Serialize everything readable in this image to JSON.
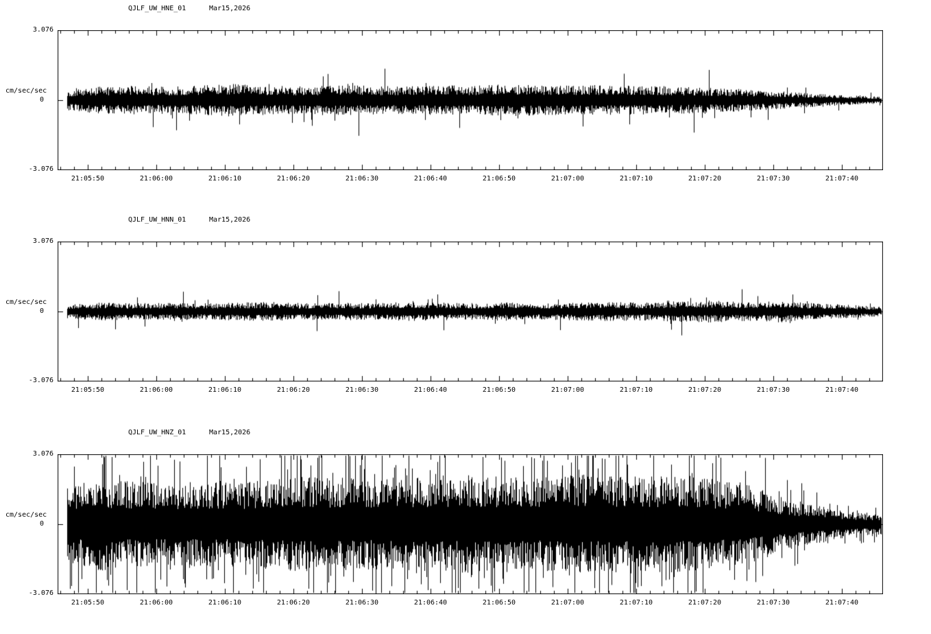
{
  "page": {
    "background": "#ffffff",
    "text_color": "#000000",
    "trace_color": "#000000"
  },
  "chart_data": [
    {
      "type": "line",
      "kind": "seismogram-waveform",
      "station": "QJLF_UW_HNE_01",
      "date": "Mar15,2026",
      "ylabel": "cm/sec/sec",
      "y_max_label": "3.076",
      "y_zero_label": "0",
      "y_min_label": "-3.076",
      "ylim": [
        -3.076,
        3.076
      ],
      "x_ticks": [
        "21:05:50",
        "21:06:00",
        "21:06:10",
        "21:06:20",
        "21:06:30",
        "21:06:40",
        "21:06:50",
        "21:07:00",
        "21:07:10",
        "21:07:20",
        "21:07:30",
        "21:07:40"
      ],
      "x_tick_interval_sec": 10,
      "grid": false,
      "envelope": [
        0.15,
        0.2,
        0.21,
        0.2,
        0.22,
        0.24,
        0.21,
        0.2,
        0.22,
        0.21,
        0.2,
        0.22,
        0.21,
        0.24,
        0.22,
        0.21,
        0.22,
        0.21,
        0.2,
        0.18,
        0.16,
        0.13,
        0.1,
        0.07,
        0.05
      ],
      "spike_prob": 0.05,
      "spike_max": 2.7,
      "seed": 101
    },
    {
      "type": "line",
      "kind": "seismogram-waveform",
      "station": "QJLF_UW_HNN_01",
      "date": "Mar15,2026",
      "ylabel": "cm/sec/sec",
      "y_max_label": "3.076",
      "y_zero_label": "0",
      "y_min_label": "-3.076",
      "ylim": [
        -3.076,
        3.076
      ],
      "x_ticks": [
        "21:05:50",
        "21:06:00",
        "21:06:10",
        "21:06:20",
        "21:06:30",
        "21:06:40",
        "21:06:50",
        "21:07:00",
        "21:07:10",
        "21:07:20",
        "21:07:30",
        "21:07:40"
      ],
      "x_tick_interval_sec": 10,
      "grid": false,
      "envelope": [
        0.1,
        0.13,
        0.12,
        0.13,
        0.12,
        0.13,
        0.14,
        0.12,
        0.13,
        0.12,
        0.14,
        0.13,
        0.12,
        0.14,
        0.12,
        0.13,
        0.14,
        0.13,
        0.15,
        0.16,
        0.14,
        0.16,
        0.12,
        0.1,
        0.07
      ],
      "spike_prob": 0.045,
      "spike_max": 2.6,
      "seed": 202
    },
    {
      "type": "line",
      "kind": "seismogram-waveform",
      "station": "QJLF_UW_HNZ_01",
      "date": "Mar15,2026",
      "ylabel": "cm/sec/sec",
      "y_max_label": "3.076",
      "y_zero_label": "0",
      "y_min_label": "-3.076",
      "ylim": [
        -3.076,
        3.076
      ],
      "x_ticks": [
        "21:05:50",
        "21:06:00",
        "21:06:10",
        "21:06:20",
        "21:06:30",
        "21:06:40",
        "21:06:50",
        "21:07:00",
        "21:07:10",
        "21:07:20",
        "21:07:30",
        "21:07:40"
      ],
      "x_tick_interval_sec": 10,
      "grid": false,
      "envelope": [
        0.55,
        0.68,
        0.62,
        0.6,
        0.64,
        0.62,
        0.66,
        0.7,
        0.68,
        0.66,
        0.7,
        0.68,
        0.72,
        0.7,
        0.68,
        0.72,
        0.7,
        0.72,
        0.7,
        0.66,
        0.6,
        0.42,
        0.28,
        0.2,
        0.15
      ],
      "spike_prob": 0.3,
      "spike_max": 2.0,
      "seed": 303
    }
  ]
}
